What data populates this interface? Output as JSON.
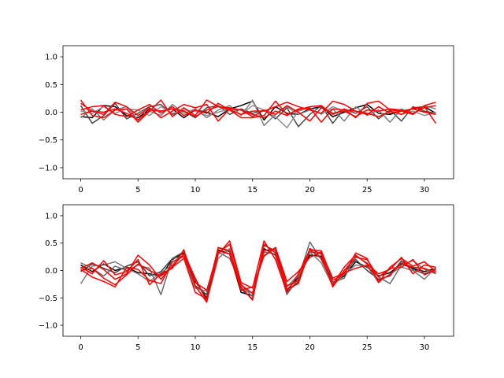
{
  "figure": {
    "background": "#ffffff"
  },
  "chart_data": [
    {
      "type": "line",
      "xlim": [
        -1.55,
        32.55
      ],
      "ylim": [
        -1.2,
        1.2
      ],
      "xticks": [
        0,
        5,
        10,
        15,
        20,
        25,
        30
      ],
      "yticks": [
        -1.0,
        -0.5,
        0.0,
        0.5,
        1.0
      ],
      "xtick_labels": [
        "0",
        "5",
        "10",
        "15",
        "20",
        "25",
        "30"
      ],
      "ytick_labels": [
        "−1.0",
        "−0.5",
        "0.0",
        "0.5",
        "1.0"
      ],
      "x": [
        0,
        1,
        2,
        3,
        4,
        5,
        6,
        7,
        8,
        9,
        10,
        11,
        12,
        13,
        14,
        15,
        16,
        17,
        18,
        19,
        20,
        21,
        22,
        23,
        24,
        25,
        26,
        27,
        28,
        29,
        30,
        31
      ],
      "series": [
        {
          "color": "#000000",
          "values": [
            -0.08,
            -0.1,
            0.12,
            0.1,
            -0.06,
            -0.1,
            0.05,
            0.02,
            0.06,
            -0.1,
            0.04,
            0.0,
            -0.08,
            0.06,
            0.12,
            0.2,
            -0.14,
            0.1,
            -0.02,
            -0.04,
            0.06,
            0.1,
            -0.08,
            0.0,
            0.08,
            0.14,
            -0.02,
            -0.04,
            0.02,
            0.06,
            0.1,
            -0.02
          ]
        },
        {
          "color": "#4a4a4a",
          "values": [
            0.12,
            -0.2,
            -0.06,
            0.16,
            -0.12,
            -0.02,
            0.1,
            0.14,
            -0.04,
            0.02,
            -0.1,
            0.08,
            0.12,
            -0.04,
            0.06,
            -0.02,
            0.04,
            -0.12,
            0.08,
            -0.26,
            -0.04,
            0.12,
            -0.2,
            0.06,
            -0.02,
            0.1,
            -0.12,
            0.04,
            -0.16,
            0.1,
            0.02,
            -0.02
          ]
        },
        {
          "color": "#808080",
          "values": [
            -0.1,
            0.06,
            -0.14,
            0.04,
            0.1,
            -0.14,
            0.02,
            -0.06,
            0.14,
            -0.02,
            0.06,
            -0.1,
            0.04,
            0.12,
            -0.06,
            0.22,
            -0.24,
            -0.04,
            0.1,
            -0.04,
            0.04,
            -0.02,
            0.06,
            -0.16,
            0.1,
            -0.06,
            0.04,
            -0.18,
            0.06,
            -0.04,
            0.12,
            0.06
          ]
        },
        {
          "color": "#909090",
          "values": [
            0.02,
            -0.02,
            0.1,
            -0.02,
            0.06,
            0.04,
            -0.06,
            0.1,
            -0.02,
            0.04,
            0.02,
            -0.06,
            0.0,
            0.06,
            -0.04,
            0.12,
            0.04,
            -0.08,
            -0.28,
            0.02,
            0.08,
            -0.04,
            0.1,
            0.02,
            -0.08,
            0.04,
            0.02,
            0.06,
            -0.04,
            0.02,
            -0.06,
            0.0
          ]
        },
        {
          "color": "#ff0000",
          "values": [
            0.22,
            -0.06,
            -0.1,
            0.04,
            0.06,
            -0.18,
            0.02,
            0.22,
            -0.08,
            0.08,
            -0.06,
            0.22,
            0.1,
            0.04,
            -0.1,
            -0.1,
            -0.06,
            0.2,
            -0.04,
            0.04,
            0.1,
            0.12,
            -0.04,
            0.06,
            -0.1,
            0.16,
            0.2,
            0.04,
            0.02,
            -0.04,
            0.12,
            0.18
          ]
        },
        {
          "color": "#ff0000",
          "values": [
            0.04,
            0.1,
            0.12,
            -0.04,
            -0.08,
            0.04,
            0.14,
            -0.02,
            0.1,
            -0.06,
            0.04,
            -0.02,
            0.16,
            0.04,
            -0.04,
            0.02,
            0.02,
            0.1,
            0.18,
            0.1,
            0.04,
            -0.02,
            0.2,
            0.14,
            0.02,
            -0.04,
            0.1,
            -0.02,
            0.02,
            0.06,
            0.0,
            -0.04
          ]
        },
        {
          "color": "#ff0000",
          "values": [
            0.16,
            0.02,
            -0.04,
            0.18,
            0.1,
            -0.06,
            0.08,
            -0.1,
            0.02,
            0.14,
            0.08,
            0.14,
            -0.16,
            0.06,
            0.04,
            -0.08,
            0.04,
            -0.04,
            0.12,
            0.0,
            -0.16,
            0.08,
            -0.02,
            0.02,
            -0.08,
            0.04,
            0.02,
            0.06,
            0.04,
            -0.02,
            0.08,
            0.12
          ]
        },
        {
          "color": "#ff0000",
          "values": [
            -0.04,
            0.02,
            0.0,
            0.06,
            -0.02,
            -0.14,
            0.04,
            0.02,
            0.06,
            0.02,
            -0.08,
            0.04,
            0.1,
            0.08,
            0.04,
            -0.04,
            -0.1,
            0.02,
            -0.06,
            0.06,
            0.08,
            -0.18,
            0.06,
            0.04,
            0.02,
            -0.02,
            -0.08,
            0.02,
            -0.04,
            0.08,
            0.1,
            -0.2
          ]
        }
      ]
    },
    {
      "type": "line",
      "xlim": [
        -1.55,
        32.55
      ],
      "ylim": [
        -1.2,
        1.2
      ],
      "xticks": [
        0,
        5,
        10,
        15,
        20,
        25,
        30
      ],
      "yticks": [
        -1.0,
        -0.5,
        0.0,
        0.5,
        1.0
      ],
      "xtick_labels": [
        "0",
        "5",
        "10",
        "15",
        "20",
        "25",
        "30"
      ],
      "ytick_labels": [
        "−1.0",
        "−0.5",
        "0.0",
        "0.5",
        "1.0"
      ],
      "x": [
        0,
        1,
        2,
        3,
        4,
        5,
        6,
        7,
        8,
        9,
        10,
        11,
        12,
        13,
        14,
        15,
        16,
        17,
        18,
        19,
        20,
        21,
        22,
        23,
        24,
        25,
        26,
        27,
        28,
        29,
        30,
        31
      ],
      "series": [
        {
          "color": "#000000",
          "values": [
            0.1,
            -0.02,
            0.12,
            0.0,
            0.06,
            -0.04,
            -0.06,
            -0.1,
            0.2,
            0.32,
            -0.2,
            -0.5,
            0.38,
            0.3,
            -0.4,
            -0.46,
            0.4,
            0.28,
            -0.36,
            -0.12,
            0.28,
            0.26,
            -0.22,
            -0.1,
            0.16,
            0.06,
            -0.1,
            -0.04,
            0.12,
            0.04,
            -0.02,
            0.04
          ]
        },
        {
          "color": "#404040",
          "values": [
            -0.02,
            0.12,
            0.04,
            -0.04,
            0.08,
            0.16,
            -0.1,
            -0.02,
            0.22,
            0.34,
            -0.28,
            -0.44,
            0.42,
            0.34,
            -0.34,
            -0.52,
            0.46,
            0.36,
            -0.4,
            -0.2,
            0.34,
            0.32,
            -0.28,
            -0.04,
            0.2,
            0.0,
            -0.16,
            -0.1,
            0.18,
            0.02,
            -0.06,
            0.02
          ]
        },
        {
          "color": "#6a6a6a",
          "values": [
            0.14,
            0.04,
            -0.1,
            0.08,
            0.0,
            0.1,
            0.04,
            -0.44,
            0.22,
            0.26,
            -0.32,
            -0.38,
            0.34,
            0.22,
            -0.26,
            -0.48,
            0.34,
            0.3,
            -0.44,
            -0.14,
            0.52,
            0.2,
            -0.22,
            -0.14,
            0.26,
            0.14,
            -0.12,
            -0.24,
            0.1,
            0.18,
            0.02,
            -0.06
          ]
        },
        {
          "color": "#7a7a7a",
          "values": [
            -0.24,
            0.08,
            0.1,
            0.16,
            0.04,
            -0.06,
            -0.2,
            -0.04,
            0.1,
            0.36,
            -0.16,
            -0.56,
            0.22,
            0.4,
            -0.36,
            -0.4,
            0.28,
            0.42,
            -0.3,
            -0.08,
            0.34,
            0.14,
            -0.28,
            -0.06,
            0.1,
            0.08,
            -0.22,
            -0.06,
            0.06,
            0.0,
            -0.16,
            0.06
          ]
        },
        {
          "color": "#ff0000",
          "values": [
            0.04,
            0.14,
            0.02,
            -0.16,
            -0.06,
            0.28,
            0.1,
            -0.16,
            0.08,
            0.3,
            -0.14,
            -0.56,
            0.3,
            0.54,
            -0.22,
            -0.32,
            0.54,
            0.2,
            -0.4,
            -0.06,
            0.38,
            0.36,
            -0.18,
            -0.06,
            0.32,
            0.22,
            -0.22,
            0.06,
            0.22,
            0.08,
            0.16,
            -0.02
          ]
        },
        {
          "color": "#ff0000",
          "values": [
            0.06,
            -0.06,
            0.18,
            -0.08,
            -0.02,
            0.2,
            -0.26,
            -0.06,
            0.04,
            0.38,
            -0.28,
            -0.58,
            0.42,
            0.36,
            -0.3,
            -0.54,
            0.48,
            0.32,
            -0.34,
            -0.24,
            0.38,
            0.22,
            -0.26,
            0.06,
            0.28,
            0.12,
            -0.06,
            0.02,
            0.24,
            -0.06,
            0.1,
            0.06
          ]
        },
        {
          "color": "#ff0000",
          "values": [
            0.0,
            0.04,
            -0.14,
            -0.26,
            -0.08,
            0.12,
            0.0,
            -0.1,
            0.06,
            0.22,
            -0.4,
            -0.52,
            0.32,
            0.48,
            -0.26,
            -0.42,
            0.36,
            0.4,
            -0.28,
            -0.18,
            0.4,
            0.3,
            -0.3,
            0.0,
            0.24,
            0.2,
            -0.12,
            0.04,
            0.06,
            0.2,
            -0.08,
            0.02
          ]
        },
        {
          "color": "#ff0000",
          "values": [
            0.02,
            -0.12,
            -0.2,
            -0.3,
            0.06,
            0.02,
            -0.18,
            -0.24,
            0.16,
            0.26,
            -0.22,
            -0.36,
            0.36,
            0.3,
            -0.36,
            -0.3,
            0.26,
            0.42,
            -0.2,
            -0.02,
            0.24,
            0.34,
            -0.14,
            -0.04,
            0.04,
            0.1,
            -0.18,
            -0.08,
            0.14,
            0.06,
            0.04,
            -0.04
          ]
        }
      ]
    }
  ]
}
